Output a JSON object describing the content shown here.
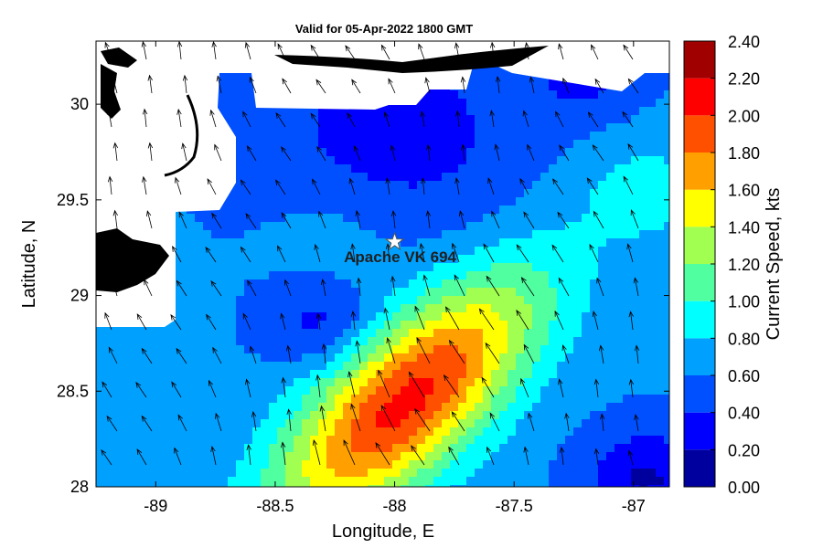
{
  "chart_data": {
    "type": "heatmap",
    "title": "Valid for 05-Apr-2022 1800 GMT",
    "xlabel": "Longitude, E",
    "ylabel": "Latitude, N",
    "xlim": [
      -89.25,
      -86.85
    ],
    "ylim": [
      28.0,
      30.33
    ],
    "x_ticks": [
      -89,
      -88.5,
      -88,
      -87.5,
      -87
    ],
    "y_ticks": [
      28,
      28.5,
      29,
      29.5,
      30
    ],
    "colorbar": {
      "label": "Current Speed, kts",
      "levels": [
        0.0,
        0.2,
        0.4,
        0.6,
        0.8,
        1.0,
        1.2,
        1.4,
        1.6,
        1.8,
        2.0,
        2.2,
        2.4
      ],
      "tick_labels": [
        "0.00",
        "0.20",
        "0.40",
        "0.60",
        "0.80",
        "1.00",
        "1.20",
        "1.40",
        "1.60",
        "1.80",
        "2.00",
        "2.20",
        "2.40"
      ],
      "colors": [
        "#00009e",
        "#0000ff",
        "#0050ff",
        "#00a0ff",
        "#00ffff",
        "#50ffa0",
        "#a0ff50",
        "#ffff00",
        "#ffa000",
        "#ff5000",
        "#ff0000",
        "#a00000"
      ]
    },
    "annotation": {
      "text": "Apache VK 694",
      "marker": "star",
      "lon": -88.0,
      "lat": 29.28
    },
    "jet_core": {
      "lon": -87.95,
      "lat": 28.45,
      "peak_speed": 2.05
    },
    "flow": "currents generally toward the north-northwest; strongest in a southwest-northeast band south of 29N",
    "grid": false,
    "legend": "colorbar on right"
  },
  "colors": {
    "land": "#000000",
    "no_data": "#ffffff",
    "arrow": "#000000"
  }
}
